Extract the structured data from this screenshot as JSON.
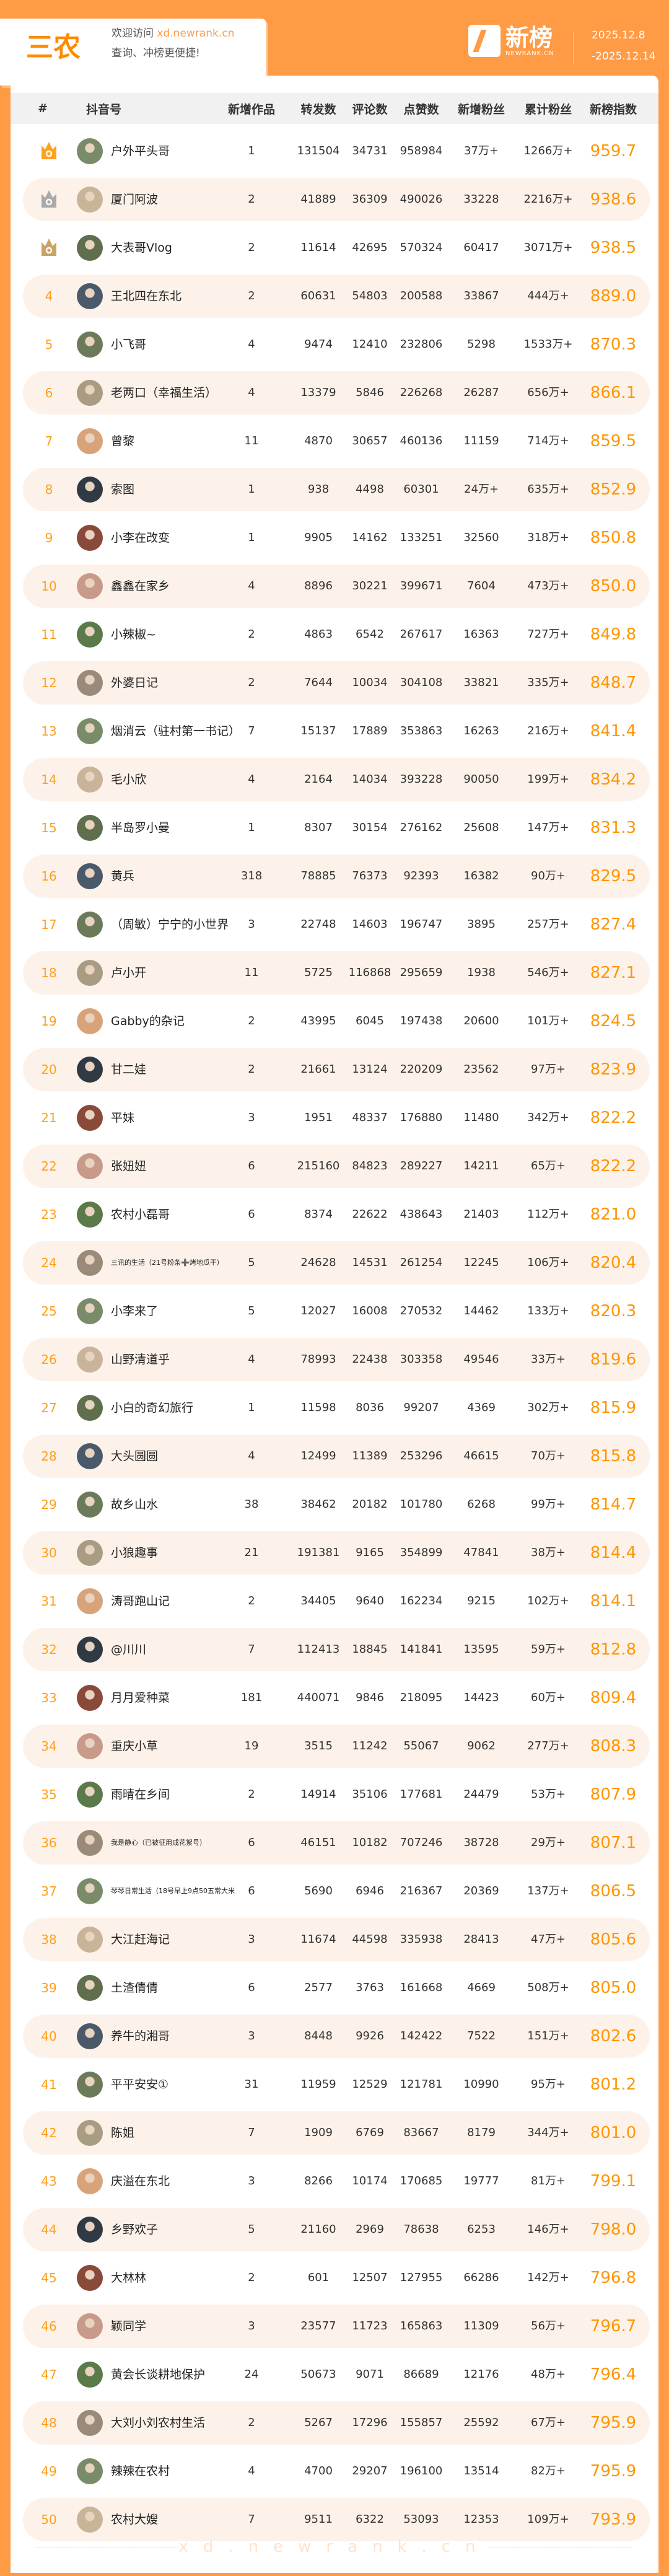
{
  "header": {
    "title": "三农",
    "welcome_prefix": "欢迎访问 ",
    "welcome_url": "xd.newrank.cn",
    "welcome_line2": "查询、冲榜更便捷!",
    "logo_text": "新榜",
    "logo_sub": "NEWRANK.CN",
    "date_start": "2025.12.8",
    "date_end": "-2025.12.14"
  },
  "columns": [
    "#",
    "抖音号",
    "新增作品",
    "转发数",
    "评论数",
    "点赞数",
    "新增粉丝",
    "累计粉丝",
    "新榜指数"
  ],
  "colors": {
    "brand": "#FF9A45",
    "index": "#FF9500",
    "row_highlight": "#FDF2E9",
    "gold": "#FFA21F",
    "silver": "#A9A9A9",
    "bronze": "#C9A464"
  },
  "medal_icons": [
    "crown-gold-icon",
    "crown-silver-icon",
    "crown-bronze-icon"
  ],
  "rows": [
    [
      "1",
      "户外平头哥",
      "1",
      "131504",
      "34731",
      "958984",
      "37万+",
      "1266万+",
      "959.7"
    ],
    [
      "2",
      "厦门阿波",
      "2",
      "41889",
      "36309",
      "490026",
      "33228",
      "2216万+",
      "938.6"
    ],
    [
      "3",
      "大表哥Vlog",
      "2",
      "11614",
      "42695",
      "570324",
      "60417",
      "3071万+",
      "938.5"
    ],
    [
      "4",
      "王北四在东北",
      "2",
      "60631",
      "54803",
      "200588",
      "33867",
      "444万+",
      "889.0"
    ],
    [
      "5",
      "小飞哥",
      "4",
      "9474",
      "12410",
      "232806",
      "5298",
      "1533万+",
      "870.3"
    ],
    [
      "6",
      "老两口（幸福生活）",
      "4",
      "13379",
      "5846",
      "226268",
      "26287",
      "656万+",
      "866.1"
    ],
    [
      "7",
      "曾黎",
      "11",
      "4870",
      "30657",
      "460136",
      "11159",
      "714万+",
      "859.5"
    ],
    [
      "8",
      "索图",
      "1",
      "938",
      "4498",
      "60301",
      "24万+",
      "635万+",
      "852.9"
    ],
    [
      "9",
      "小李在改变",
      "1",
      "9905",
      "14162",
      "133251",
      "32560",
      "318万+",
      "850.8"
    ],
    [
      "10",
      "鑫鑫在家乡",
      "4",
      "8896",
      "30221",
      "399671",
      "7604",
      "473万+",
      "850.0"
    ],
    [
      "11",
      "小辣椒~",
      "2",
      "4863",
      "6542",
      "267617",
      "16363",
      "727万+",
      "849.8"
    ],
    [
      "12",
      "外婆日记",
      "2",
      "7644",
      "10034",
      "304108",
      "33821",
      "335万+",
      "848.7"
    ],
    [
      "13",
      "烟消云（驻村第一书记）",
      "7",
      "15137",
      "17889",
      "353863",
      "16263",
      "216万+",
      "841.4"
    ],
    [
      "14",
      "毛小欣",
      "4",
      "2164",
      "14034",
      "393228",
      "90050",
      "199万+",
      "834.2"
    ],
    [
      "15",
      "半岛罗小曼",
      "1",
      "8307",
      "30154",
      "276162",
      "25608",
      "147万+",
      "831.3"
    ],
    [
      "16",
      "黄兵",
      "318",
      "78885",
      "76373",
      "92393",
      "16382",
      "90万+",
      "829.5"
    ],
    [
      "17",
      "（周敏）宁宁的小世界",
      "3",
      "22748",
      "14603",
      "196747",
      "3895",
      "257万+",
      "827.4"
    ],
    [
      "18",
      "卢小开",
      "11",
      "5725",
      "116868",
      "295659",
      "1938",
      "546万+",
      "827.1"
    ],
    [
      "19",
      "Gabby的杂记",
      "2",
      "43995",
      "6045",
      "197438",
      "20600",
      "101万+",
      "824.5"
    ],
    [
      "20",
      "甘二娃",
      "2",
      "21661",
      "13124",
      "220209",
      "23562",
      "97万+",
      "823.9"
    ],
    [
      "21",
      "平妹",
      "3",
      "1951",
      "48337",
      "176880",
      "11480",
      "342万+",
      "822.2"
    ],
    [
      "22",
      "张妞妞",
      "6",
      "215160",
      "84823",
      "289227",
      "14211",
      "65万+",
      "822.2"
    ],
    [
      "23",
      "农村小磊哥",
      "6",
      "8374",
      "22622",
      "438643",
      "21403",
      "112万+",
      "821.0"
    ],
    [
      "24",
      "三讯的生活（21号粉条➕烤地瓜干）",
      "5",
      "24628",
      "14531",
      "261254",
      "12245",
      "106万+",
      "820.4"
    ],
    [
      "25",
      "小李来了",
      "5",
      "12027",
      "16008",
      "270532",
      "14462",
      "133万+",
      "820.3"
    ],
    [
      "26",
      "山野清道乎",
      "4",
      "78993",
      "22438",
      "303358",
      "49546",
      "33万+",
      "819.6"
    ],
    [
      "27",
      "小白的奇幻旅行",
      "1",
      "11598",
      "8036",
      "99207",
      "4369",
      "302万+",
      "815.9"
    ],
    [
      "28",
      "大头圆圆",
      "4",
      "12499",
      "11389",
      "253296",
      "46615",
      "70万+",
      "815.8"
    ],
    [
      "29",
      "故乡山水",
      "38",
      "38462",
      "20182",
      "101780",
      "6268",
      "99万+",
      "814.7"
    ],
    [
      "30",
      "小狼趣事",
      "21",
      "191381",
      "9165",
      "354899",
      "47841",
      "38万+",
      "814.4"
    ],
    [
      "31",
      "涛哥跑山记",
      "2",
      "34405",
      "9640",
      "162234",
      "9215",
      "102万+",
      "814.1"
    ],
    [
      "32",
      "@川川",
      "7",
      "112413",
      "18845",
      "141841",
      "13595",
      "59万+",
      "812.8"
    ],
    [
      "33",
      "月月爱种菜",
      "181",
      "440071",
      "9846",
      "218095",
      "14423",
      "60万+",
      "809.4"
    ],
    [
      "34",
      "重庆小草",
      "19",
      "3515",
      "11242",
      "55067",
      "9062",
      "277万+",
      "808.3"
    ],
    [
      "35",
      "雨晴在乡间",
      "2",
      "14914",
      "35106",
      "177681",
      "24479",
      "53万+",
      "807.9"
    ],
    [
      "36",
      "我是静心（已被征用成花絮号）",
      "6",
      "46151",
      "10182",
      "707246",
      "38728",
      "29万+",
      "807.1"
    ],
    [
      "37",
      "琴琴日常生活（18号早上9点50五常大米",
      "6",
      "5690",
      "6946",
      "216367",
      "20369",
      "137万+",
      "806.5"
    ],
    [
      "38",
      "大江赶海记",
      "3",
      "11674",
      "44598",
      "335938",
      "28413",
      "47万+",
      "805.6"
    ],
    [
      "39",
      "土渣倩倩",
      "6",
      "2577",
      "3763",
      "161668",
      "4669",
      "508万+",
      "805.0"
    ],
    [
      "40",
      "养牛的湘哥",
      "3",
      "8448",
      "9926",
      "142422",
      "7522",
      "151万+",
      "802.6"
    ],
    [
      "41",
      "平平安安①",
      "31",
      "11959",
      "12529",
      "121781",
      "10990",
      "95万+",
      "801.2"
    ],
    [
      "42",
      "陈姐",
      "7",
      "1909",
      "6769",
      "83667",
      "8179",
      "344万+",
      "801.0"
    ],
    [
      "43",
      "庆溢在东北",
      "3",
      "8266",
      "10174",
      "170685",
      "19777",
      "81万+",
      "799.1"
    ],
    [
      "44",
      "乡野欢子",
      "5",
      "21160",
      "2969",
      "78638",
      "6253",
      "146万+",
      "798.0"
    ],
    [
      "45",
      "大林林",
      "2",
      "601",
      "12507",
      "127955",
      "66286",
      "142万+",
      "796.8"
    ],
    [
      "46",
      "颖同学",
      "3",
      "23577",
      "11723",
      "165863",
      "11309",
      "56万+",
      "796.7"
    ],
    [
      "47",
      "黄会长谈耕地保护",
      "24",
      "50673",
      "9071",
      "86689",
      "12176",
      "48万+",
      "796.4"
    ],
    [
      "48",
      "大刘小刘农村生活",
      "2",
      "5267",
      "17296",
      "155857",
      "25592",
      "67万+",
      "795.9"
    ],
    [
      "49",
      "辣辣在农村",
      "4",
      "4700",
      "29207",
      "196100",
      "13514",
      "82万+",
      "795.9"
    ],
    [
      "50",
      "农村大嫂",
      "7",
      "9511",
      "6322",
      "53093",
      "12353",
      "109万+",
      "793.9"
    ]
  ],
  "footer": {
    "watermark": "xd.newrank.cn"
  }
}
